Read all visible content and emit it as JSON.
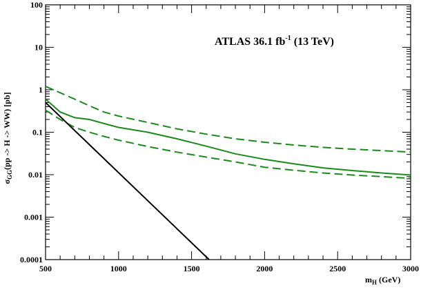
{
  "chart_data": {
    "type": "line",
    "title": "",
    "xlabel": {
      "main": "m",
      "sub": "H",
      "unit": " (GeV)"
    },
    "ylabel": {
      "pre": "σ",
      "sub": "GG",
      "rest": "(pp -> H -> WW) [pb]"
    },
    "annotation": {
      "main": "ATLAS  36.1 fb",
      "sup": "-1",
      "tail": " (13 TeV)"
    },
    "xlim": [
      500,
      3000
    ],
    "ylim": [
      0.0001,
      100
    ],
    "yscale": "log",
    "x_ticks": [
      "500",
      "1000",
      "1500",
      "2000",
      "2500",
      "3000"
    ],
    "y_ticks": [
      "0.0001",
      "0.001",
      "0.01",
      "0.1",
      "1",
      "10",
      "100"
    ],
    "colors": {
      "expected": "#1a8a1a",
      "theory": "#000000"
    },
    "series": [
      {
        "role": "band-upper",
        "style": "dashed",
        "color": "#1a8a1a",
        "x": [
          500,
          600,
          700,
          800,
          900,
          1000,
          1200,
          1400,
          1600,
          1800,
          2000,
          2200,
          2400,
          2600,
          2800,
          3000
        ],
        "y": [
          1.2,
          0.85,
          0.6,
          0.42,
          0.3,
          0.24,
          0.17,
          0.12,
          0.09,
          0.07,
          0.058,
          0.05,
          0.044,
          0.04,
          0.037,
          0.034
        ]
      },
      {
        "role": "expected",
        "style": "solid",
        "color": "#1a8a1a",
        "x": [
          500,
          600,
          700,
          800,
          900,
          1000,
          1200,
          1400,
          1600,
          1800,
          2000,
          2200,
          2400,
          2600,
          2800,
          3000
        ],
        "y": [
          0.6,
          0.3,
          0.22,
          0.2,
          0.16,
          0.13,
          0.1,
          0.07,
          0.047,
          0.031,
          0.023,
          0.018,
          0.0145,
          0.0125,
          0.011,
          0.0098
        ]
      },
      {
        "role": "band-lower",
        "style": "dashed",
        "color": "#1a8a1a",
        "x": [
          500,
          600,
          700,
          800,
          900,
          1000,
          1200,
          1400,
          1600,
          1800,
          2000,
          2200,
          2400,
          2600,
          2800,
          3000
        ],
        "y": [
          0.33,
          0.2,
          0.13,
          0.1,
          0.08,
          0.065,
          0.046,
          0.034,
          0.026,
          0.02,
          0.015,
          0.0127,
          0.011,
          0.0098,
          0.009,
          0.0082
        ]
      },
      {
        "role": "theory",
        "style": "solid",
        "color": "#000000",
        "x": [
          500,
          1620
        ],
        "y": [
          0.5,
          0.0001
        ]
      }
    ]
  }
}
